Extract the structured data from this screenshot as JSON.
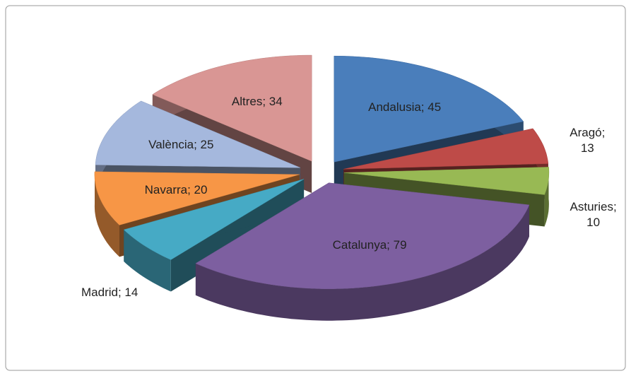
{
  "chart_data": {
    "type": "pie3d",
    "categories": [
      "Andalusia",
      "Aragó",
      "Asturies",
      "Catalunya",
      "Madrid",
      "Navarra",
      "València",
      "Altres"
    ],
    "values": [
      45,
      13,
      10,
      79,
      14,
      20,
      25,
      34
    ],
    "value_labels": [
      "Andalusia; 45",
      "Aragó; 13",
      "Asturies; 10",
      "Catalunya; 79",
      "Madrid; 14",
      "Navarra; 20",
      "València; 25",
      "Altres; 34"
    ],
    "colors": [
      "#4a7ebb",
      "#be4b48",
      "#98b954",
      "#7d5fa0",
      "#46aac5",
      "#f79646",
      "#a5b8dd",
      "#d99694"
    ],
    "exploded": true
  }
}
